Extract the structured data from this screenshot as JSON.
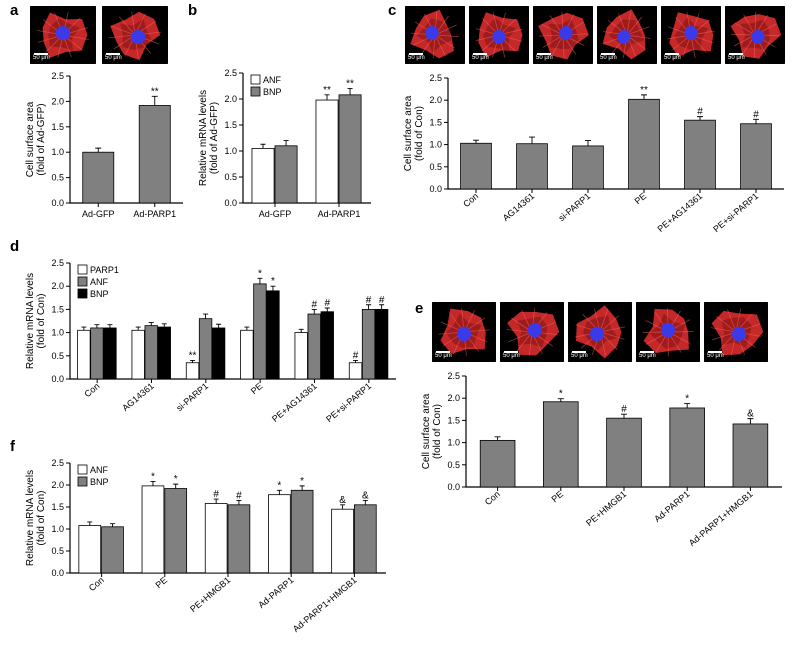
{
  "colors": {
    "bar_gray": "#808080",
    "bar_white": "#ffffff",
    "bar_black": "#000000",
    "axis": "#000000",
    "cell_red": "#d62b2b",
    "cell_red_dark": "#7a0f0f",
    "nucleus": "#3a3ae8",
    "bg": "#000000"
  },
  "scalebar": "50 μm",
  "panel_a": {
    "title": "a",
    "ylabel": "Cell surface area\n(fold of Ad-GFP)",
    "ylim": [
      0,
      2.5
    ],
    "ytick": 0.5,
    "categories": [
      "Ad-GFP",
      "Ad-PARP1"
    ],
    "values": [
      1.0,
      1.92
    ],
    "error": [
      0.08,
      0.18
    ],
    "sig": [
      "",
      "**"
    ],
    "bar_color": "#808080"
  },
  "panel_b": {
    "title": "b",
    "ylabel": "Relative mRNA levels\n(fold of Ad-GFP)",
    "ylim": [
      0,
      2.5
    ],
    "ytick": 0.5,
    "categories": [
      "Ad-GFP",
      "Ad-PARP1"
    ],
    "series": [
      {
        "name": "ANF",
        "color": "#ffffff",
        "values": [
          1.05,
          1.98
        ],
        "error": [
          0.08,
          0.1
        ],
        "sig": [
          "",
          "**"
        ]
      },
      {
        "name": "BNP",
        "color": "#808080",
        "values": [
          1.1,
          2.08
        ],
        "error": [
          0.1,
          0.12
        ],
        "sig": [
          "",
          "**"
        ]
      }
    ]
  },
  "panel_c": {
    "title": "c",
    "ylabel": "Cell surface area\n(fold of Con)",
    "ylim": [
      0,
      2.5
    ],
    "ytick": 0.5,
    "categories": [
      "Con",
      "AG14361",
      "si-PARP1",
      "PE",
      "PE+AG14361",
      "PE+si-PARP1"
    ],
    "values": [
      1.03,
      1.02,
      0.97,
      2.02,
      1.55,
      1.47
    ],
    "error": [
      0.07,
      0.15,
      0.12,
      0.1,
      0.08,
      0.1
    ],
    "sig": [
      "",
      "",
      "",
      "**",
      "#",
      "#"
    ],
    "bar_color": "#808080"
  },
  "panel_d": {
    "title": "d",
    "ylabel": "Relative mRNA levels\n(fold of Con)",
    "ylim": [
      0,
      2.5
    ],
    "ytick": 0.5,
    "categories": [
      "Con",
      "AG14361",
      "si-PARP1",
      "PE",
      "PE+AG14361",
      "PE+si-PARP1"
    ],
    "series": [
      {
        "name": "PARP1",
        "color": "#ffffff",
        "values": [
          1.05,
          1.05,
          0.35,
          1.05,
          1.0,
          0.35
        ],
        "error": [
          0.07,
          0.07,
          0.05,
          0.07,
          0.07,
          0.05
        ],
        "sig": [
          "",
          "",
          "**",
          "",
          "",
          "#"
        ]
      },
      {
        "name": "ANF",
        "color": "#808080",
        "values": [
          1.1,
          1.15,
          1.3,
          2.05,
          1.4,
          1.5
        ],
        "error": [
          0.07,
          0.07,
          0.1,
          0.12,
          0.1,
          0.1
        ],
        "sig": [
          "",
          "",
          "",
          "*",
          "#",
          "#"
        ]
      },
      {
        "name": "BNP",
        "color": "#000000",
        "values": [
          1.1,
          1.12,
          1.1,
          1.9,
          1.45,
          1.5
        ],
        "error": [
          0.07,
          0.07,
          0.08,
          0.1,
          0.08,
          0.1
        ],
        "sig": [
          "",
          "",
          "",
          "*",
          "#",
          "#"
        ]
      }
    ]
  },
  "panel_e": {
    "title": "e",
    "ylabel": "Cell surface area\n(fold of Con)",
    "ylim": [
      0,
      2.5
    ],
    "ytick": 0.5,
    "categories": [
      "Con",
      "PE",
      "PE+HMGB1",
      "Ad-PARP1",
      "Ad-PARP1+HMGB1"
    ],
    "values": [
      1.05,
      1.92,
      1.55,
      1.78,
      1.42
    ],
    "error": [
      0.08,
      0.07,
      0.09,
      0.1,
      0.12
    ],
    "sig": [
      "",
      "*",
      "#",
      "*",
      "&"
    ],
    "bar_color": "#808080"
  },
  "panel_f": {
    "title": "f",
    "ylabel": "Relative mRNA levels\n(fold of Con)",
    "ylim": [
      0,
      2.5
    ],
    "ytick": 0.5,
    "categories": [
      "Con",
      "PE",
      "PE+HMGB1",
      "Ad-PARP1",
      "Ad-PARP1+HMGB1"
    ],
    "series": [
      {
        "name": "ANF",
        "color": "#ffffff",
        "values": [
          1.08,
          1.98,
          1.58,
          1.78,
          1.45
        ],
        "error": [
          0.08,
          0.1,
          0.1,
          0.1,
          0.1
        ],
        "sig": [
          "",
          "*",
          "#",
          "*",
          "&"
        ]
      },
      {
        "name": "BNP",
        "color": "#808080",
        "values": [
          1.05,
          1.92,
          1.55,
          1.88,
          1.55
        ],
        "error": [
          0.07,
          0.1,
          0.1,
          0.1,
          0.1
        ],
        "sig": [
          "",
          "*",
          "#",
          "*",
          "&"
        ]
      }
    ]
  }
}
